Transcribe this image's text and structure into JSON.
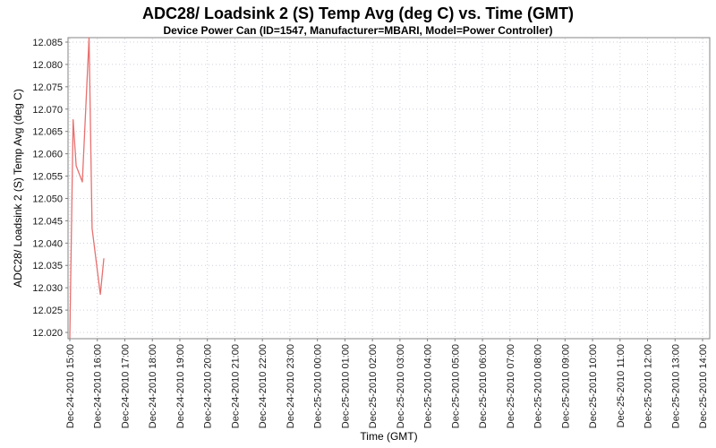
{
  "header": {
    "title": "ADC28/ Loadsink 2 (S) Temp Avg (deg C) vs. Time (GMT)",
    "subtitle": "Device Power Can (ID=1547, Manufacturer=MBARI, Model=Power Controller)"
  },
  "chart_data": {
    "type": "line",
    "title": "ADC28/ Loadsink 2 (S) Temp Avg (deg C) vs. Time (GMT)",
    "subtitle": "Device Power Can (ID=1547, Manufacturer=MBARI, Model=Power Controller)",
    "xlabel": "Time (GMT)",
    "ylabel": "ADC28/ Loadsink 2 (S) Temp Avg (deg C)",
    "grid": true,
    "legend": "none",
    "x_tick_labels": [
      "Dec-24-2010 15:00",
      "Dec-24-2010 16:00",
      "Dec-24-2010 17:00",
      "Dec-24-2010 18:00",
      "Dec-24-2010 19:00",
      "Dec-24-2010 20:00",
      "Dec-24-2010 21:00",
      "Dec-24-2010 22:00",
      "Dec-24-2010 23:00",
      "Dec-25-2010 00:00",
      "Dec-25-2010 01:00",
      "Dec-25-2010 02:00",
      "Dec-25-2010 03:00",
      "Dec-25-2010 04:00",
      "Dec-25-2010 05:00",
      "Dec-25-2010 06:00",
      "Dec-25-2010 07:00",
      "Dec-25-2010 08:00",
      "Dec-25-2010 09:00",
      "Dec-25-2010 10:00",
      "Dec-25-2010 11:00",
      "Dec-25-2010 12:00",
      "Dec-25-2010 13:00",
      "Dec-25-2010 14:00"
    ],
    "x_tick_hours": [
      0,
      1,
      2,
      3,
      4,
      5,
      6,
      7,
      8,
      9,
      10,
      11,
      12,
      13,
      14,
      15,
      16,
      17,
      18,
      19,
      20,
      21,
      22,
      23
    ],
    "xlim_hours": [
      -0.065,
      23.26
    ],
    "y_ticks": [
      12.02,
      12.025,
      12.03,
      12.035,
      12.04,
      12.045,
      12.05,
      12.055,
      12.06,
      12.065,
      12.07,
      12.075,
      12.08,
      12.085
    ],
    "y_tick_labels": [
      "12.020",
      "12.025",
      "12.030",
      "12.035",
      "12.040",
      "12.045",
      "12.050",
      "12.055",
      "12.060",
      "12.065",
      "12.070",
      "12.075",
      "12.080",
      "12.085"
    ],
    "ylim": [
      12.0186,
      12.086
    ],
    "series": [
      {
        "name": "ADC28/ Loadsink 2 (S) Temp Avg",
        "color": "#e8706f",
        "points": [
          [
            0.0,
            12.0188
          ],
          [
            0.12,
            12.0676
          ],
          [
            0.23,
            12.0573
          ],
          [
            0.455,
            12.0537
          ],
          [
            0.7,
            12.086
          ],
          [
            0.81,
            12.0433
          ],
          [
            1.11,
            12.0285
          ],
          [
            1.235,
            12.0365
          ]
        ]
      }
    ],
    "colors": {
      "series_line": "#e8706f",
      "plot_border": "#848484",
      "gridline": "#cdd0de",
      "tick_mark": "#808080",
      "tick_label": "#1a1a1a",
      "background": "#ffffff"
    }
  }
}
